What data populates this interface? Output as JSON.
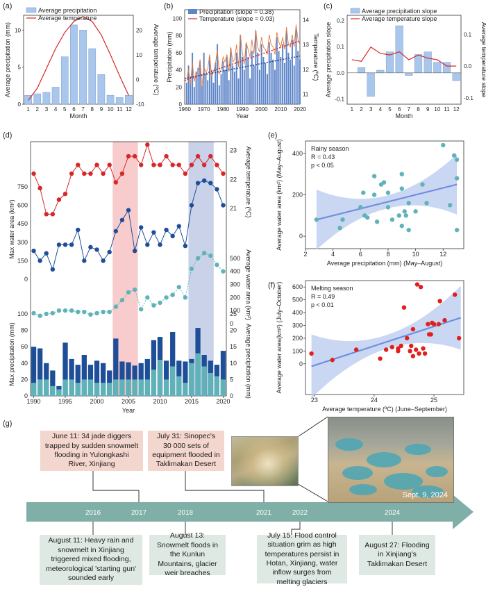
{
  "panel_labels": [
    "(a)",
    "(b)",
    "(c)",
    "(d)",
    "(e)",
    "(f)",
    "(g)"
  ],
  "colors": {
    "bar_blue": "#a9c6ec",
    "red": "#d62728",
    "navy": "#1f4e99",
    "teal": "#5fb3b8",
    "pink_band": "#f7c3c3",
    "blue_band": "#c3cde6",
    "timeline": "#7fafa6"
  },
  "chart_data": [
    {
      "id": "a",
      "type": "bar",
      "categories": [
        "1",
        "2",
        "3",
        "4",
        "5",
        "6",
        "7",
        "8",
        "9",
        "10",
        "11",
        "12"
      ],
      "series": [
        {
          "name": "Average precipitation",
          "values": [
            1.2,
            1.4,
            1.6,
            2.3,
            6.4,
            10.7,
            10.0,
            7.5,
            4.0,
            1.2,
            0.9,
            1.2
          ]
        },
        {
          "name": "Average temperature",
          "values": [
            -8.5,
            -3.5,
            4.5,
            12.5,
            19.0,
            23.5,
            25.5,
            23.5,
            18.0,
            10.0,
            1.5,
            -6.5
          ]
        }
      ],
      "xlabel": "Month",
      "ylabel": "Average precipitation (mm)",
      "ylabel_right": "Average temperature (ºC)",
      "ylim": [
        0,
        12
      ],
      "ylim_right": [
        -10,
        26
      ],
      "yticks": [
        "0",
        "5",
        "10"
      ],
      "yticks_right": [
        "-10",
        "0",
        "10",
        "20"
      ]
    },
    {
      "id": "b",
      "type": "bar",
      "x_start": 1961,
      "series": [
        {
          "name": "Precipitation (slope = 0.38)",
          "values": [
            25,
            45,
            28,
            60,
            20,
            38,
            42,
            50,
            22,
            60,
            35,
            28,
            55,
            40,
            25,
            48,
            70,
            22,
            35,
            50,
            40,
            55,
            28,
            65,
            45,
            38,
            60,
            30,
            80,
            55,
            40,
            70,
            55,
            30,
            62,
            45,
            85,
            60,
            40,
            70,
            55,
            48,
            35,
            72,
            60,
            52,
            40,
            78,
            62,
            55,
            70,
            48,
            85,
            60,
            52,
            75,
            45,
            88,
            62,
            52
          ]
        },
        {
          "name": "Temperature (slope = 0.03)",
          "values": [
            11.6,
            12.0,
            11.4,
            12.3,
            11.5,
            11.9,
            11.8,
            12.4,
            11.3,
            12.1,
            11.9,
            12.0,
            12.6,
            11.7,
            11.9,
            12.2,
            12.8,
            11.8,
            12.0,
            12.5,
            12.3,
            12.6,
            11.9,
            12.9,
            12.3,
            12.4,
            13.0,
            12.1,
            13.4,
            12.7,
            12.2,
            13.1,
            12.8,
            12.5,
            13.2,
            12.6,
            13.6,
            12.9,
            12.7,
            13.3,
            12.9,
            12.8,
            12.6,
            13.4,
            13.0,
            12.9,
            12.6,
            13.5,
            13.1,
            12.9,
            13.3,
            12.8,
            13.7,
            13.0,
            12.9,
            13.4,
            12.9,
            13.8,
            13.2,
            13.0
          ]
        }
      ],
      "xlabel": "Year",
      "ylabel": "Precipitation (mm)",
      "ylabel_right": "Temperature (ºC)",
      "xticks": [
        "1960",
        "1970",
        "1980",
        "1990",
        "2000",
        "2010",
        "2020"
      ],
      "yticks": [
        "0",
        "20",
        "40",
        "60",
        "80",
        "100"
      ],
      "yticks_right": [
        "11",
        "12",
        "13",
        "14"
      ],
      "ylim": [
        0,
        110
      ],
      "ylim_right": [
        10.6,
        14.4
      ]
    },
    {
      "id": "c",
      "type": "bar",
      "categories": [
        "1",
        "2",
        "3",
        "4",
        "5",
        "6",
        "7",
        "8",
        "9",
        "10",
        "11",
        "12"
      ],
      "series": [
        {
          "name": "Average precipitation slope",
          "values": [
            0.0,
            0.02,
            -0.09,
            0.01,
            0.08,
            0.18,
            -0.01,
            0.07,
            0.08,
            0.04,
            0.04,
            -0.03
          ]
        },
        {
          "name": "Average temperature slope",
          "values": [
            0.02,
            0.015,
            0.06,
            0.04,
            0.035,
            0.045,
            0.02,
            0.035,
            0.025,
            0.02,
            0.0,
            0.0
          ]
        }
      ],
      "xlabel": "Month",
      "ylabel": "Average precipitation slope",
      "ylabel_right": "Average temperature slope",
      "yticks": [
        "-0.1",
        "0.0",
        "0.1",
        "0.2"
      ],
      "yticks_right": [
        "-0.1",
        "0.0",
        "0.1"
      ],
      "ylim": [
        -0.12,
        0.22
      ],
      "ylim_right": [
        -0.12,
        0.16
      ]
    },
    {
      "id": "d",
      "type": "line",
      "x_years": [
        1990,
        1991,
        1992,
        1993,
        1994,
        1995,
        1996,
        1997,
        1998,
        1999,
        2000,
        2001,
        2002,
        2003,
        2004,
        2005,
        2006,
        2007,
        2008,
        2009,
        2010,
        2011,
        2012,
        2013,
        2014,
        2015,
        2016,
        2017,
        2018,
        2019,
        2020
      ],
      "xticks": [
        "1990",
        "1995",
        "2000",
        "2005",
        "2010",
        "2015",
        "2020"
      ],
      "xlabel": "Year",
      "series": [
        {
          "name": "Average temperature",
          "axis_label": "Average temperature (ºC)",
          "values": [
            22.2,
            21.7,
            20.8,
            20.8,
            21.3,
            21.5,
            22.2,
            22.5,
            22.2,
            22.2,
            22.5,
            22.2,
            22.5,
            21.9,
            22.2,
            22.8,
            22.8,
            22.5,
            23.2,
            22.5,
            22.5,
            22.8,
            22.5,
            22.5,
            22.2,
            22.5,
            22.8,
            22.5,
            22.8,
            22.5,
            22.2
          ],
          "ticks": [
            "21",
            "22",
            "23"
          ]
        },
        {
          "name": "Max water area",
          "axis_label": "Max water area (km²)",
          "values": [
            230,
            150,
            210,
            80,
            280,
            280,
            280,
            400,
            150,
            260,
            240,
            150,
            220,
            390,
            480,
            560,
            230,
            420,
            280,
            380,
            280,
            400,
            350,
            430,
            270,
            600,
            780,
            800,
            780,
            730,
            600
          ],
          "ticks": [
            "0",
            "150",
            "300",
            "450",
            "600",
            "750"
          ]
        },
        {
          "name": "Average water area",
          "axis_label": "Average water area (km²)",
          "values": [
            80,
            60,
            75,
            80,
            100,
            100,
            100,
            90,
            90,
            70,
            80,
            90,
            90,
            130,
            180,
            240,
            260,
            110,
            200,
            140,
            160,
            200,
            220,
            280,
            200,
            420,
            500,
            540,
            520,
            450,
            400
          ],
          "ticks": [
            "0",
            "100",
            "200",
            "300",
            "400",
            "500"
          ]
        },
        {
          "name": "Max precipitation",
          "axis_label": "Max precipitation (mm)",
          "values": [
            60,
            58,
            40,
            31,
            12,
            65,
            45,
            38,
            50,
            38,
            43,
            40,
            31,
            70,
            42,
            41,
            37,
            40,
            45,
            68,
            72,
            43,
            78,
            43,
            42,
            45,
            83,
            50,
            43,
            38,
            55
          ],
          "ticks": [
            "0",
            "20",
            "40",
            "60",
            "80",
            "100"
          ]
        },
        {
          "name": "Average precipitation",
          "axis_label": "Average precipitation (mm)",
          "values": [
            4,
            5,
            5,
            3,
            2,
            5,
            5,
            4,
            5,
            5,
            4,
            4,
            4,
            5,
            5,
            5,
            5,
            5,
            5,
            8,
            11,
            5,
            9,
            6,
            4,
            10,
            13,
            9,
            7,
            6,
            5
          ],
          "ticks": [
            "0",
            "5",
            "10",
            "15",
            "20",
            "25"
          ]
        }
      ],
      "shaded_periods": [
        [
          "2003",
          "2006"
        ],
        [
          "2015",
          "2018"
        ]
      ]
    },
    {
      "id": "e",
      "type": "scatter",
      "annotation": [
        "Rainy season",
        "R = 0.43",
        "p < 0.05"
      ],
      "xlabel": "Average precipitation (mm) (May–August)",
      "ylabel": "Average water area (km²) (May–August)",
      "xticks": [
        "2",
        "4",
        "6",
        "8",
        "10",
        "12"
      ],
      "yticks": [
        "0",
        "200",
        "400"
      ],
      "xlim": [
        2,
        13.5
      ],
      "ylim": [
        -60,
        460
      ],
      "points": [
        [
          2.8,
          80
        ],
        [
          4.5,
          40
        ],
        [
          4.7,
          80
        ],
        [
          6,
          140
        ],
        [
          6.2,
          210
        ],
        [
          6.3,
          100
        ],
        [
          6.5,
          90
        ],
        [
          7,
          200
        ],
        [
          7,
          290
        ],
        [
          7.2,
          70
        ],
        [
          7.5,
          250
        ],
        [
          7.7,
          260
        ],
        [
          8,
          210
        ],
        [
          8,
          140
        ],
        [
          8.3,
          80
        ],
        [
          8.8,
          100
        ],
        [
          9,
          230
        ],
        [
          9,
          300
        ],
        [
          9,
          50
        ],
        [
          9.2,
          120
        ],
        [
          9.3,
          100
        ],
        [
          9.5,
          30
        ],
        [
          9.5,
          160
        ],
        [
          10,
          120
        ],
        [
          10.5,
          250
        ],
        [
          10.8,
          160
        ],
        [
          12,
          440
        ],
        [
          12.5,
          150
        ],
        [
          12.8,
          390
        ],
        [
          13,
          370
        ],
        [
          13,
          280
        ],
        [
          13,
          30
        ]
      ],
      "fit": [
        [
          2.8,
          80
        ],
        [
          13,
          250
        ]
      ]
    },
    {
      "id": "f",
      "type": "scatter",
      "annotation": [
        "Melting season",
        "R = 0.49",
        "p < 0.01"
      ],
      "xlabel": "Average temperature (ºC) (June–September)",
      "ylabel": "Average water area(km²) (July–October)",
      "xticks": [
        "23",
        "24",
        "25"
      ],
      "yticks": [
        "0",
        "100",
        "200",
        "300",
        "400",
        "500",
        "600"
      ],
      "xlim": [
        22.85,
        25.5
      ],
      "ylim": [
        -240,
        650
      ],
      "points": [
        [
          22.95,
          80
        ],
        [
          23.3,
          30
        ],
        [
          23.7,
          110
        ],
        [
          24.1,
          40
        ],
        [
          24.2,
          110
        ],
        [
          24.3,
          130
        ],
        [
          24.4,
          100
        ],
        [
          24.4,
          120
        ],
        [
          24.45,
          140
        ],
        [
          24.5,
          440
        ],
        [
          24.55,
          200
        ],
        [
          24.6,
          100
        ],
        [
          24.62,
          140
        ],
        [
          24.65,
          270
        ],
        [
          24.65,
          60
        ],
        [
          24.7,
          110
        ],
        [
          24.72,
          620
        ],
        [
          24.75,
          80
        ],
        [
          24.78,
          600
        ],
        [
          24.82,
          120
        ],
        [
          24.85,
          80
        ],
        [
          24.9,
          310
        ],
        [
          24.92,
          230
        ],
        [
          24.95,
          230
        ],
        [
          24.97,
          320
        ],
        [
          25,
          310
        ],
        [
          25.08,
          310
        ],
        [
          25.1,
          490
        ],
        [
          25.18,
          340
        ],
        [
          25.35,
          540
        ],
        [
          25.42,
          200
        ]
      ],
      "fit": [
        [
          22.95,
          -20
        ],
        [
          25.45,
          360
        ]
      ]
    }
  ],
  "timeline": {
    "years": [
      "2016",
      "2017",
      "2018",
      "2021",
      "2022",
      "2024"
    ],
    "events_top": [
      "June 11: 34 jade diggers trapped by sudden snowmelt flooding in Yulongkashi River, Xinjiang",
      "July 31: Sinopec's 30 000 sets of equipment flooded in Taklimakan Desert"
    ],
    "events_bottom": [
      "August 11: Heavy rain and snowmelt in Xinjiang triggered mixed flooding, meteorological 'starting gun' sounded early",
      "August 13: Snowmelt floods in the Kunlun Mountains, glacier weir breaches",
      "July 15: Flood control situation grim as high temperatures persist in Hotan, Xinjiang, water inflow surges from melting glaciers",
      "August 27: Flooding in Xinjiang's Taklimakan Desert"
    ],
    "photo_caption": "Sept. 9, 2024"
  }
}
